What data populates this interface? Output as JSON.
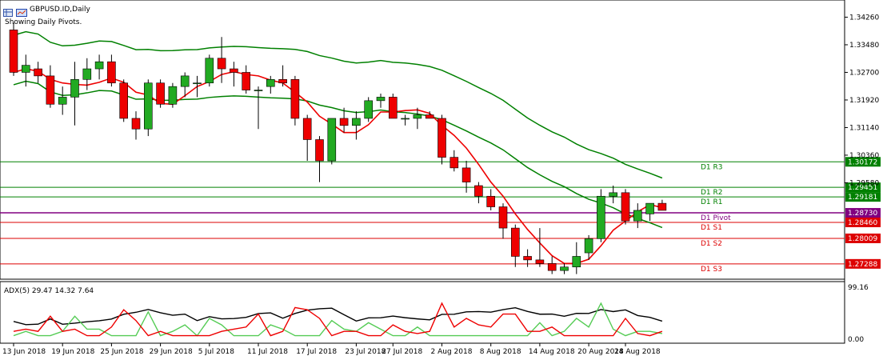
{
  "header": {
    "symbol": "GBPUSD.ID,Daily",
    "status": "Showing Daily Pivots."
  },
  "price_scale": [
    "1.34260",
    "1.33480",
    "1.32700",
    "1.31920",
    "1.31140",
    "1.30360",
    "1.29580"
  ],
  "pivots": [
    {
      "label": "D1 R3",
      "value": "1.30172",
      "color": "#008000"
    },
    {
      "label": "D1 R2",
      "value": "1.29451",
      "color": "#008000"
    },
    {
      "label": "D1 R1",
      "value": "1.29181",
      "color": "#008000"
    },
    {
      "label": "D1 Pivot",
      "value": "1.28730",
      "color": "#800080"
    },
    {
      "label": "D1 S1",
      "value": "1.28460",
      "color": "#dd0000"
    },
    {
      "label": "D1 S2",
      "value": "1.28009",
      "color": "#dd0000"
    },
    {
      "label": "D1 S3",
      "value": "1.27288",
      "color": "#dd0000"
    }
  ],
  "indicator": {
    "label": "ADX(5) 29.47 14.32 7.64",
    "scale_top": "99.16",
    "scale_bottom": "0.00"
  },
  "dates": [
    "13 Jun 2018",
    "19 Jun 2018",
    "25 Jun 2018",
    "29 Jun 2018",
    "5 Jul 2018",
    "11 Jul 2018",
    "17 Jul 2018",
    "23 Jul 2018",
    "27 Jul 2018",
    "2 Aug 2018",
    "8 Aug 2018",
    "14 Aug 2018",
    "20 Aug 2018",
    "24 Aug 2018"
  ],
  "colors": {
    "bull": "#22aa22",
    "bear": "#ee0000",
    "ma": "#ee0000",
    "bands": "#008000",
    "adx": "#000000",
    "plus_di": "#55cc55",
    "minus_di": "#ee0000"
  },
  "chart_data": {
    "type": "candlestick",
    "series": [
      {
        "name": "GBPUSD.ID,Daily",
        "ohlc": [
          [
            1.339,
            1.341,
            1.326,
            1.327
          ],
          [
            1.327,
            1.332,
            1.323,
            1.329
          ],
          [
            1.328,
            1.33,
            1.324,
            1.326
          ],
          [
            1.326,
            1.329,
            1.317,
            1.318
          ],
          [
            1.318,
            1.323,
            1.315,
            1.32
          ],
          [
            1.32,
            1.33,
            1.312,
            1.325
          ],
          [
            1.325,
            1.331,
            1.322,
            1.328
          ],
          [
            1.328,
            1.332,
            1.325,
            1.33
          ],
          [
            1.33,
            1.332,
            1.323,
            1.324
          ],
          [
            1.324,
            1.325,
            1.313,
            1.314
          ],
          [
            1.314,
            1.316,
            1.308,
            1.311
          ],
          [
            1.311,
            1.325,
            1.309,
            1.324
          ],
          [
            1.324,
            1.325,
            1.317,
            1.318
          ],
          [
            1.318,
            1.324,
            1.317,
            1.323
          ],
          [
            1.323,
            1.327,
            1.32,
            1.326
          ],
          [
            1.324,
            1.326,
            1.32,
            1.324
          ],
          [
            1.324,
            1.332,
            1.323,
            1.331
          ],
          [
            1.331,
            1.337,
            1.324,
            1.328
          ],
          [
            1.328,
            1.33,
            1.323,
            1.327
          ],
          [
            1.327,
            1.329,
            1.321,
            1.322
          ],
          [
            1.322,
            1.323,
            1.311,
            1.322
          ],
          [
            1.323,
            1.326,
            1.321,
            1.325
          ],
          [
            1.325,
            1.329,
            1.323,
            1.324
          ],
          [
            1.325,
            1.326,
            1.312,
            1.314
          ],
          [
            1.314,
            1.315,
            1.302,
            1.308
          ],
          [
            1.308,
            1.309,
            1.296,
            1.302
          ],
          [
            1.302,
            1.314,
            1.301,
            1.314
          ],
          [
            1.314,
            1.317,
            1.31,
            1.312
          ],
          [
            1.312,
            1.316,
            1.308,
            1.314
          ],
          [
            1.314,
            1.32,
            1.313,
            1.319
          ],
          [
            1.319,
            1.321,
            1.317,
            1.32
          ],
          [
            1.32,
            1.321,
            1.314,
            1.314
          ],
          [
            1.314,
            1.315,
            1.312,
            1.314
          ],
          [
            1.314,
            1.317,
            1.311,
            1.315
          ],
          [
            1.315,
            1.316,
            1.314,
            1.314
          ],
          [
            1.314,
            1.315,
            1.301,
            1.303
          ],
          [
            1.303,
            1.305,
            1.299,
            1.3
          ],
          [
            1.3,
            1.302,
            1.293,
            1.296
          ],
          [
            1.295,
            1.296,
            1.29,
            1.292
          ],
          [
            1.292,
            1.294,
            1.288,
            1.289
          ],
          [
            1.289,
            1.29,
            1.28,
            1.283
          ],
          [
            1.283,
            1.284,
            1.272,
            1.275
          ],
          [
            1.275,
            1.277,
            1.272,
            1.274
          ],
          [
            1.274,
            1.283,
            1.272,
            1.273
          ],
          [
            1.273,
            1.275,
            1.27,
            1.271
          ],
          [
            1.271,
            1.273,
            1.27,
            1.272
          ],
          [
            1.272,
            1.279,
            1.27,
            1.275
          ],
          [
            1.276,
            1.281,
            1.274,
            1.28
          ],
          [
            1.28,
            1.294,
            1.279,
            1.292
          ],
          [
            1.292,
            1.295,
            1.29,
            1.293
          ],
          [
            1.293,
            1.294,
            1.284,
            1.285
          ],
          [
            1.285,
            1.29,
            1.283,
            1.288
          ],
          [
            1.287,
            1.29,
            1.285,
            1.29
          ],
          [
            1.29,
            1.291,
            1.288,
            1.288
          ]
        ]
      }
    ],
    "ylim": [
      1.269,
      1.347
    ],
    "adx_ylim": [
      0,
      99.16
    ]
  }
}
